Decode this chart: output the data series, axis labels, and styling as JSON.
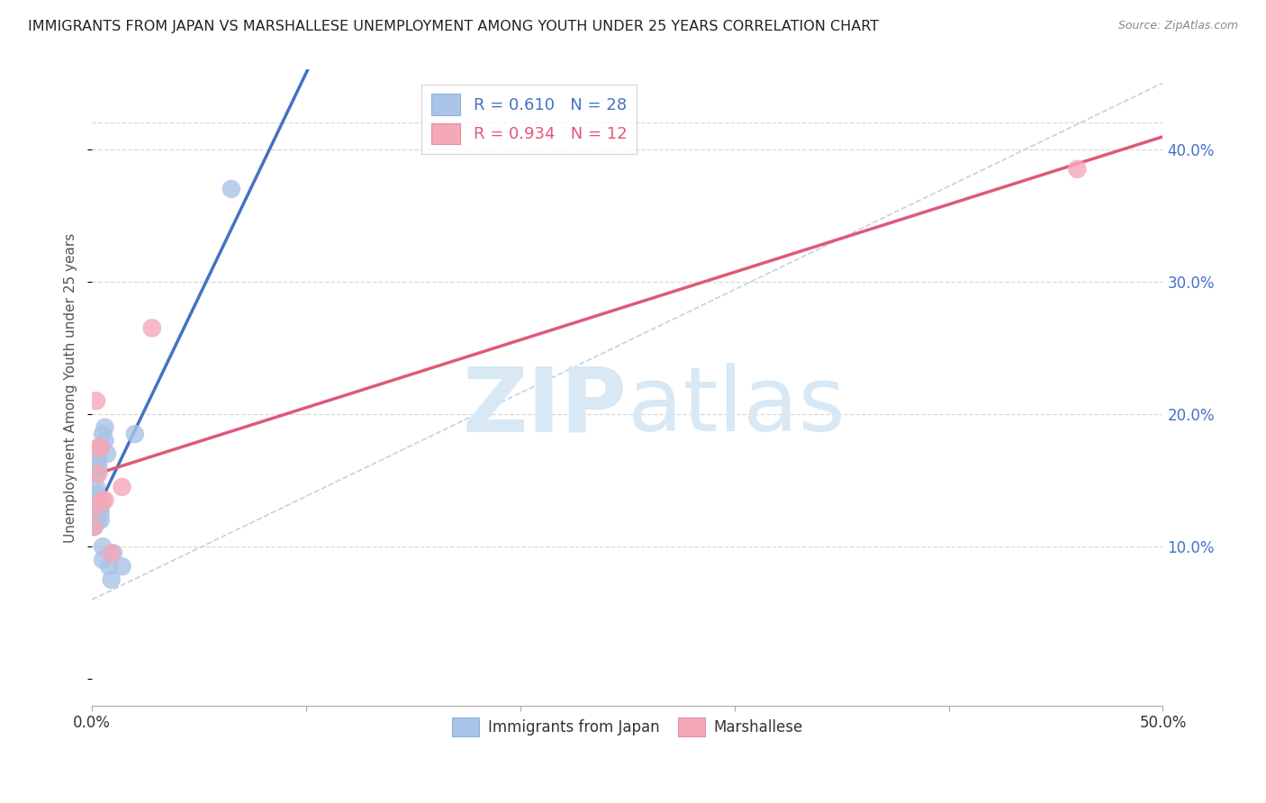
{
  "title": "IMMIGRANTS FROM JAPAN VS MARSHALLESE UNEMPLOYMENT AMONG YOUTH UNDER 25 YEARS CORRELATION CHART",
  "source": "Source: ZipAtlas.com",
  "ylabel": "Unemployment Among Youth under 25 years",
  "legend_label1": "Immigrants from Japan",
  "legend_label2": "Marshallese",
  "R1": 0.61,
  "N1": 28,
  "R2": 0.934,
  "N2": 12,
  "color_japan": "#aac4e8",
  "color_marsh": "#f4a8b8",
  "color_japan_line": "#4472c4",
  "color_marsh_line": "#e05878",
  "color_diag": "#c0c8d4",
  "japan_x": [
    0.001,
    0.001,
    0.001,
    0.002,
    0.002,
    0.002,
    0.002,
    0.003,
    0.003,
    0.003,
    0.003,
    0.003,
    0.004,
    0.004,
    0.004,
    0.004,
    0.005,
    0.005,
    0.005,
    0.006,
    0.006,
    0.007,
    0.008,
    0.009,
    0.01,
    0.014,
    0.02,
    0.065
  ],
  "japan_y": [
    0.115,
    0.125,
    0.13,
    0.135,
    0.14,
    0.145,
    0.155,
    0.12,
    0.13,
    0.16,
    0.165,
    0.17,
    0.12,
    0.125,
    0.13,
    0.175,
    0.09,
    0.1,
    0.185,
    0.18,
    0.19,
    0.17,
    0.085,
    0.075,
    0.095,
    0.085,
    0.185,
    0.37
  ],
  "marsh_x": [
    0.001,
    0.002,
    0.002,
    0.003,
    0.003,
    0.004,
    0.005,
    0.006,
    0.009,
    0.014,
    0.028,
    0.46
  ],
  "marsh_y": [
    0.115,
    0.13,
    0.21,
    0.155,
    0.175,
    0.175,
    0.135,
    0.135,
    0.095,
    0.145,
    0.265,
    0.385
  ],
  "xlim": [
    0.0,
    0.5
  ],
  "ylim": [
    -0.02,
    0.46
  ],
  "xtick_positions": [
    0.0,
    0.1,
    0.2,
    0.3,
    0.4,
    0.5
  ],
  "ytick_positions": [
    0.0,
    0.1,
    0.2,
    0.3,
    0.4
  ],
  "right_ytick_labels": [
    "",
    "10.0%",
    "20.0%",
    "30.0%",
    "40.0%"
  ],
  "background_color": "#ffffff",
  "watermark_zip": "ZIP",
  "watermark_atlas": "atlas",
  "watermark_color": "#d8e8f5"
}
